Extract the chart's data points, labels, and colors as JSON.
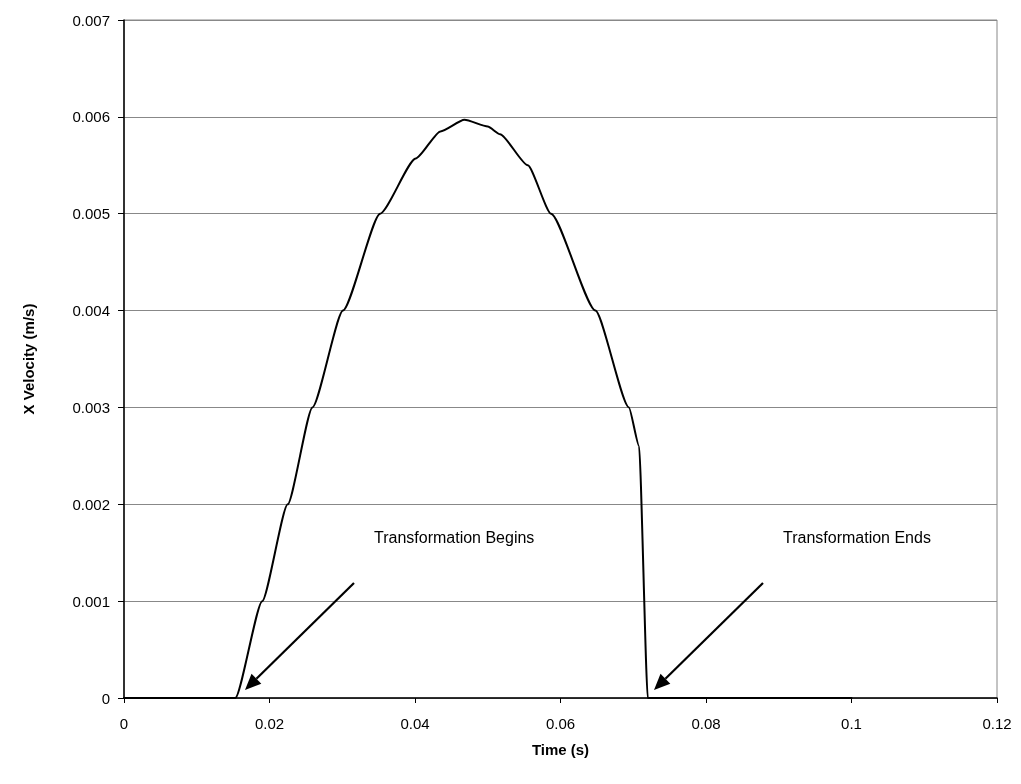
{
  "chart_data": {
    "type": "line",
    "xlabel": "Time (s)",
    "ylabel": "X Velocity (m/s)",
    "series": [
      {
        "color": "#000000",
        "x": [
          0,
          0.0153,
          0.019,
          0.0225,
          0.0259,
          0.0301,
          0.0352,
          0.0401,
          0.0435,
          0.0468,
          0.05,
          0.0517,
          0.0555,
          0.0587,
          0.0648,
          0.0694,
          0.0708,
          0.072,
          0.1
        ],
        "values": [
          0,
          0,
          0.001,
          0.002,
          0.003,
          0.004,
          0.005,
          0.00557,
          0.00585,
          0.00597,
          0.0059,
          0.00582,
          0.0055,
          0.005,
          0.004,
          0.003,
          0.0026,
          0,
          0
        ]
      }
    ],
    "xlim": [
      0,
      0.12
    ],
    "xticks": [
      0,
      0.02,
      0.04,
      0.06,
      0.08,
      0.1,
      0.12
    ],
    "ylim": [
      0,
      0.007
    ],
    "yticks": [
      0,
      0.001,
      0.002,
      0.003,
      0.004,
      0.005,
      0.006,
      0.007
    ],
    "grid": "y",
    "marker": "none",
    "line_style": "solid",
    "annotations": [
      "Transformation Begins",
      "Transformation Ends"
    ]
  }
}
